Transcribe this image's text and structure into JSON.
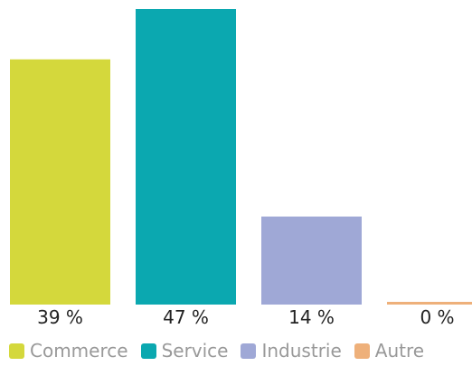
{
  "chart_data": {
    "type": "bar",
    "categories": [
      "Commerce",
      "Service",
      "Industrie",
      "Autre"
    ],
    "values": [
      39,
      47,
      14,
      0
    ],
    "value_labels": [
      "39 %",
      "47 %",
      "14 %",
      "0 %"
    ],
    "unit": "%",
    "colors": [
      "#d4d83c",
      "#0ba8b0",
      "#9fa8d6",
      "#eeb07a"
    ],
    "ylim": [
      0,
      47
    ],
    "grid": false,
    "legend_position": "bottom"
  },
  "legend": {
    "items": [
      {
        "label": "Commerce",
        "color": "#d4d83c"
      },
      {
        "label": "Service",
        "color": "#0ba8b0"
      },
      {
        "label": "Industrie",
        "color": "#9fa8d6"
      },
      {
        "label": "Autre",
        "color": "#eeb07a"
      }
    ]
  }
}
